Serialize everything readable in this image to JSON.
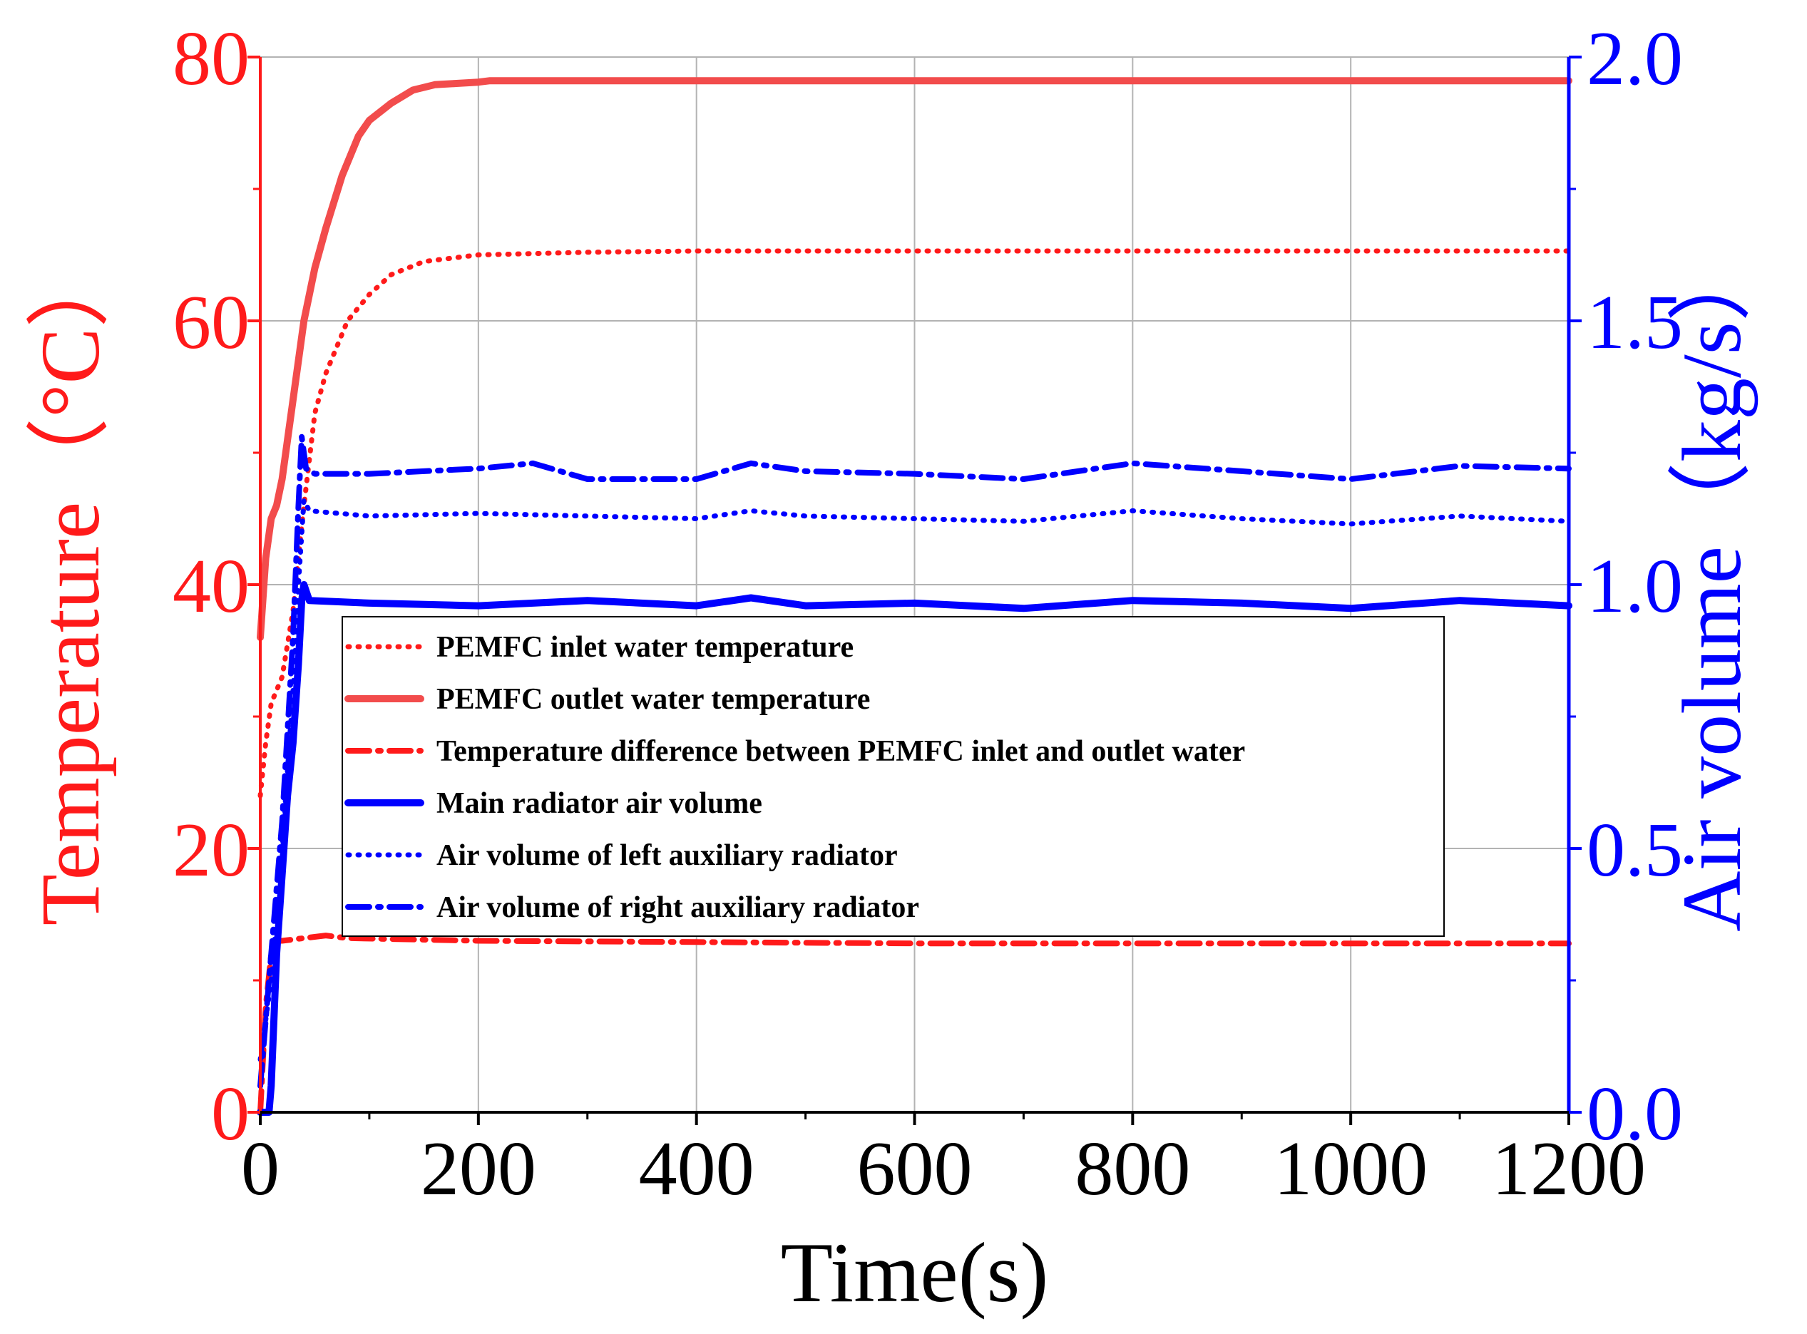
{
  "chart_data": {
    "type": "line",
    "colors": {
      "temperature_axis": "#ff1a1a",
      "air_axis": "#0000ff",
      "outlet_line": "#f24c4c",
      "inlet_line": "#ff1a1a",
      "diff_line": "#ff1a1a",
      "air_lines": "#0000ff",
      "grid": "#b3b3b3",
      "text": "#000000"
    },
    "x_axis": {
      "label": "Time(s)",
      "range": [
        0,
        1200
      ],
      "ticks": [
        0,
        200,
        400,
        600,
        800,
        1000,
        1200
      ],
      "tick_labels": [
        "0",
        "200",
        "400",
        "600",
        "800",
        "1000",
        "1200"
      ]
    },
    "y_left": {
      "label": "Temperature（°C）",
      "range": [
        0,
        80
      ],
      "ticks": [
        0,
        20,
        40,
        60,
        80
      ],
      "tick_labels": [
        "0",
        "20",
        "40",
        "60",
        "80"
      ]
    },
    "y_right": {
      "label": "Air volume（kg/s）",
      "range": [
        0.0,
        2.0
      ],
      "ticks": [
        0.0,
        0.5,
        1.0,
        1.5,
        2.0
      ],
      "tick_labels": [
        "0.0",
        "0.5",
        "1.0",
        "1.5",
        "2.0"
      ]
    },
    "grid": true,
    "legend_position": "center",
    "series": [
      {
        "name": "PEMFC inlet water temperature",
        "axis": "left",
        "style": "dotted",
        "color_key": "inlet_line",
        "x": [
          0,
          5,
          10,
          20,
          30,
          40,
          50,
          60,
          80,
          100,
          120,
          150,
          200,
          300,
          400,
          600,
          800,
          1000,
          1200
        ],
        "y": [
          24,
          28,
          31,
          33,
          38,
          46,
          53,
          56,
          60,
          62,
          63.5,
          64.5,
          65,
          65.2,
          65.3,
          65.3,
          65.3,
          65.3,
          65.3
        ]
      },
      {
        "name": "PEMFC outlet water temperature",
        "axis": "left",
        "style": "solid",
        "color_key": "outlet_line",
        "x": [
          0,
          5,
          10,
          15,
          20,
          30,
          40,
          50,
          60,
          75,
          90,
          100,
          120,
          140,
          160,
          180,
          200,
          210,
          300,
          600,
          900,
          1200
        ],
        "y": [
          36,
          42,
          45,
          46,
          48,
          54,
          60,
          64,
          67,
          71,
          74,
          75.2,
          76.5,
          77.5,
          77.9,
          78,
          78.1,
          78.2,
          78.2,
          78.2,
          78.2,
          78.2
        ]
      },
      {
        "name": "Temperature difference between PEMFC inlet and outlet water",
        "axis": "left",
        "style": "dashdot",
        "color_key": "diff_line",
        "x": [
          0,
          5,
          10,
          15,
          20,
          40,
          60,
          80,
          200,
          400,
          600,
          800,
          1000,
          1200
        ],
        "y": [
          0,
          8,
          12,
          13,
          13,
          13.2,
          13.4,
          13.2,
          13,
          12.9,
          12.8,
          12.8,
          12.8,
          12.8
        ]
      },
      {
        "name": "Main radiator air volume",
        "axis": "right",
        "style": "solid",
        "color_key": "air_lines",
        "x": [
          0,
          8,
          10,
          15,
          20,
          25,
          30,
          35,
          38,
          40,
          45,
          100,
          200,
          300,
          400,
          450,
          500,
          600,
          700,
          800,
          900,
          1000,
          1100,
          1200
        ],
        "y": [
          0,
          0,
          0.05,
          0.3,
          0.45,
          0.6,
          0.7,
          0.85,
          0.97,
          1.0,
          0.97,
          0.965,
          0.96,
          0.97,
          0.96,
          0.975,
          0.96,
          0.965,
          0.955,
          0.97,
          0.965,
          0.955,
          0.97,
          0.96
        ]
      },
      {
        "name": "Air volume of left auxiliary radiator",
        "axis": "right",
        "style": "dotted",
        "color_key": "air_lines",
        "x": [
          0,
          10,
          20,
          30,
          35,
          40,
          45,
          100,
          200,
          300,
          400,
          450,
          500,
          600,
          700,
          800,
          900,
          1000,
          1100,
          1200
        ],
        "y": [
          0.1,
          0.25,
          0.5,
          0.8,
          1.0,
          1.16,
          1.14,
          1.13,
          1.135,
          1.13,
          1.125,
          1.14,
          1.13,
          1.125,
          1.12,
          1.14,
          1.125,
          1.115,
          1.13,
          1.12
        ]
      },
      {
        "name": "Air volume of right auxiliary radiator",
        "axis": "right",
        "style": "dashdot",
        "color_key": "air_lines",
        "x": [
          0,
          10,
          20,
          30,
          35,
          38,
          42,
          50,
          100,
          200,
          250,
          300,
          400,
          450,
          500,
          600,
          700,
          800,
          900,
          1000,
          1100,
          1200
        ],
        "y": [
          0.05,
          0.3,
          0.55,
          0.9,
          1.15,
          1.28,
          1.22,
          1.21,
          1.21,
          1.22,
          1.23,
          1.2,
          1.2,
          1.23,
          1.215,
          1.21,
          1.2,
          1.23,
          1.215,
          1.2,
          1.225,
          1.22
        ]
      }
    ]
  }
}
